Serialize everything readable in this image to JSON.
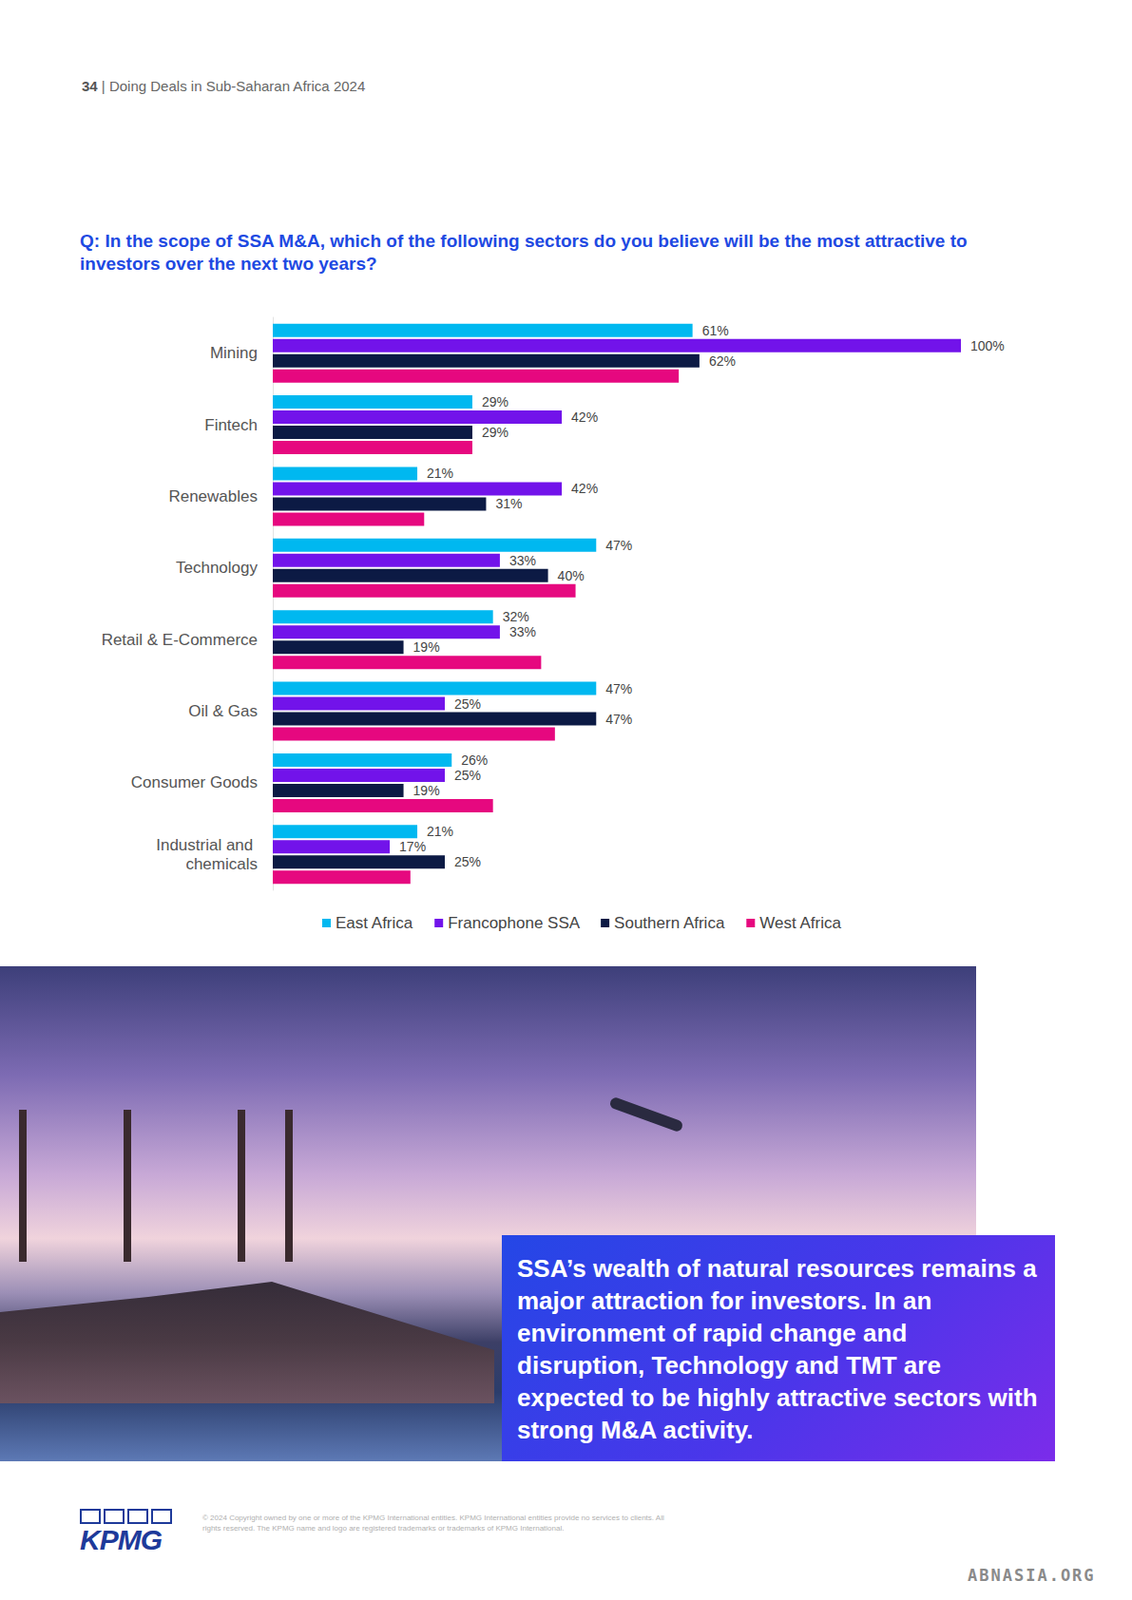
{
  "page": {
    "header": {
      "page_number": "34",
      "separator": "|",
      "title": "Doing Deals in Sub-Saharan Africa 2024"
    },
    "callout": "SSA’s wealth of natural resources remains a major attraction for investors. In an environment of rapid change and disruption, Technology and TMT are expected to be highly attractive sectors with strong M&A activity.",
    "logo": "KPMG",
    "copyright": "© 2024 Copyright owned by one or more of the KPMG International entities. KPMG International entities provide no services to clients. All rights reserved. The KPMG name and logo are registered trademarks or trademarks of KPMG International.",
    "watermark": "ABNASIA.ORG"
  },
  "chart_data": {
    "type": "bar",
    "title": "Q: In the scope of SSA M&A, which of the following sectors do you believe will be the most attractive to investors over the next two years?",
    "orientation": "horizontal",
    "categories": [
      "Mining",
      "Fintech",
      "Renewables",
      "Technology",
      "Retail & E-Commerce",
      "Oil & Gas",
      "Consumer Goods",
      "Industrial and chemicals"
    ],
    "xlim": [
      0,
      100
    ],
    "grid": false,
    "tick_labels": "y",
    "legend": "bottom",
    "series": [
      {
        "name": "East Africa",
        "color": "#00b8f0",
        "data_labels": true,
        "values": [
          61,
          29,
          21,
          47,
          32,
          47,
          26,
          21
        ],
        "value_labels": [
          "61%",
          "29%",
          "21%",
          "47%",
          "32%",
          "47%",
          "26%",
          "21%"
        ]
      },
      {
        "name": "Francophone SSA",
        "color": "#7213ea",
        "data_labels": true,
        "values": [
          100,
          42,
          42,
          33,
          33,
          25,
          25,
          17
        ],
        "value_labels": [
          "100%",
          "42%",
          "42%",
          "33%",
          "33%",
          "25%",
          "25%",
          "17%"
        ]
      },
      {
        "name": "Southern Africa",
        "color": "#0c1a44",
        "data_labels": true,
        "values": [
          62,
          29,
          31,
          40,
          19,
          47,
          19,
          25
        ],
        "value_labels": [
          "62%",
          "29%",
          "31%",
          "40%",
          "19%",
          "47%",
          "19%",
          "25%"
        ]
      },
      {
        "name": "West Africa",
        "color": "#e6087f",
        "data_labels": false,
        "values": [
          59,
          29,
          22,
          44,
          39,
          41,
          32,
          20
        ]
      }
    ]
  }
}
